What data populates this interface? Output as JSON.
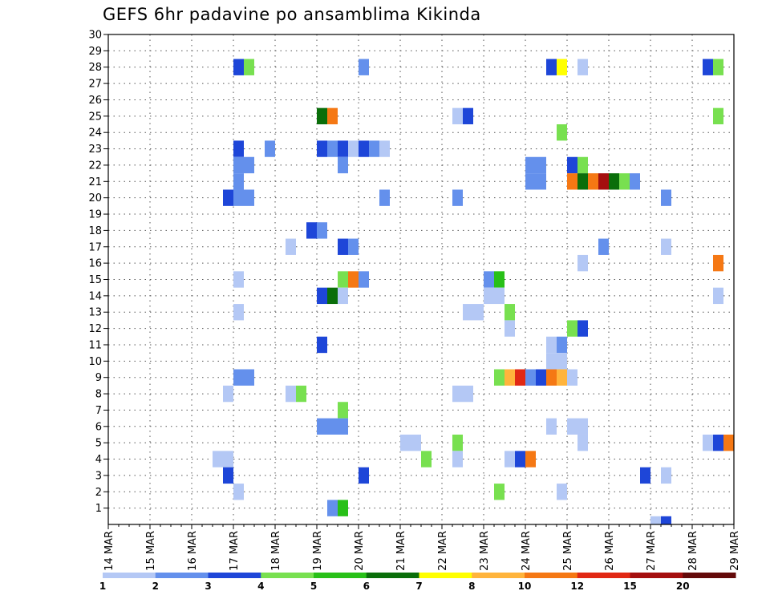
{
  "chart_data": {
    "type": "heatmap",
    "title": "GEFS 6hr padavine po ansamblima Kikinda",
    "x_ticks": [
      "14 MAR",
      "15 MAR",
      "16 MAR",
      "17 MAR",
      "18 MAR",
      "19 MAR",
      "20 MAR",
      "21 MAR",
      "22 MAR",
      "23 MAR",
      "24 MAR",
      "25 MAR",
      "26 MAR",
      "27 MAR",
      "28 MAR",
      "29 MAR"
    ],
    "y_ticks": [
      "1",
      "2",
      "3",
      "4",
      "5",
      "6",
      "7",
      "8",
      "9",
      "10",
      "11",
      "12",
      "13",
      "14",
      "15",
      "16",
      "17",
      "18",
      "19",
      "20",
      "21",
      "22",
      "23",
      "24",
      "25",
      "26",
      "27",
      "28",
      "29",
      "30"
    ],
    "xlim": [
      "14 MAR 00Z",
      "29 MAR 00Z"
    ],
    "ylim": [
      0,
      30
    ],
    "x_unit": "6-hour steps from 14 MAR 00Z",
    "grid": true,
    "colorbar": {
      "bounds": [
        "1",
        "2",
        "3",
        "4",
        "5",
        "6",
        "7",
        "8",
        "10",
        "12",
        "15",
        "20"
      ],
      "colors": [
        "#b4c8f5",
        "#6490ec",
        "#1e46d8",
        "#78e050",
        "#28c018",
        "#0a6e0a",
        "#ffff00",
        "#ffb43c",
        "#f57814",
        "#e12814",
        "#a50f0f",
        "#640a0a"
      ]
    },
    "cells": [
      {
        "x": 12.5,
        "y": 28,
        "v": "3"
      },
      {
        "x": 13.5,
        "y": 28,
        "v": "4"
      },
      {
        "x": 24.5,
        "y": 28,
        "v": "2"
      },
      {
        "x": 42.5,
        "y": 28,
        "v": "3"
      },
      {
        "x": 43.5,
        "y": 28,
        "v": "7"
      },
      {
        "x": 45.5,
        "y": 28,
        "v": "1"
      },
      {
        "x": 57.5,
        "y": 28,
        "v": "3"
      },
      {
        "x": 58.5,
        "y": 28,
        "v": "4"
      },
      {
        "x": 20.5,
        "y": 25,
        "v": "6"
      },
      {
        "x": 21.5,
        "y": 25,
        "v": "10"
      },
      {
        "x": 33.5,
        "y": 25,
        "v": "1"
      },
      {
        "x": 34.5,
        "y": 25,
        "v": "3"
      },
      {
        "x": 58.5,
        "y": 25,
        "v": "4"
      },
      {
        "x": 43.5,
        "y": 24,
        "v": "4"
      },
      {
        "x": 12.5,
        "y": 23,
        "v": "3"
      },
      {
        "x": 15.5,
        "y": 23,
        "v": "2"
      },
      {
        "x": 20.5,
        "y": 23,
        "v": "3"
      },
      {
        "x": 21.5,
        "y": 23,
        "v": "2"
      },
      {
        "x": 22.5,
        "y": 23,
        "v": "3"
      },
      {
        "x": 23.5,
        "y": 23,
        "v": "1"
      },
      {
        "x": 24.5,
        "y": 23,
        "v": "3"
      },
      {
        "x": 25.5,
        "y": 23,
        "v": "2"
      },
      {
        "x": 26.5,
        "y": 23,
        "v": "1"
      },
      {
        "x": 12.5,
        "y": 22,
        "v": "2"
      },
      {
        "x": 13.5,
        "y": 22,
        "v": "2"
      },
      {
        "x": 22.5,
        "y": 22,
        "v": "2"
      },
      {
        "x": 40.5,
        "y": 22,
        "v": "2"
      },
      {
        "x": 41.5,
        "y": 22,
        "v": "2"
      },
      {
        "x": 44.5,
        "y": 22,
        "v": "3"
      },
      {
        "x": 45.5,
        "y": 22,
        "v": "4"
      },
      {
        "x": 12.5,
        "y": 21,
        "v": "2"
      },
      {
        "x": 40.5,
        "y": 21,
        "v": "2"
      },
      {
        "x": 41.5,
        "y": 21,
        "v": "2"
      },
      {
        "x": 44.5,
        "y": 21,
        "v": "10"
      },
      {
        "x": 45.5,
        "y": 21,
        "v": "6"
      },
      {
        "x": 46.5,
        "y": 21,
        "v": "10"
      },
      {
        "x": 47.5,
        "y": 21,
        "v": "15"
      },
      {
        "x": 48.5,
        "y": 21,
        "v": "6"
      },
      {
        "x": 49.5,
        "y": 21,
        "v": "4"
      },
      {
        "x": 50.5,
        "y": 21,
        "v": "2"
      },
      {
        "x": 11.5,
        "y": 20,
        "v": "3"
      },
      {
        "x": 12.5,
        "y": 20,
        "v": "2"
      },
      {
        "x": 13.5,
        "y": 20,
        "v": "2"
      },
      {
        "x": 26.5,
        "y": 20,
        "v": "2"
      },
      {
        "x": 33.5,
        "y": 20,
        "v": "2"
      },
      {
        "x": 53.5,
        "y": 20,
        "v": "2"
      },
      {
        "x": 19.5,
        "y": 18,
        "v": "3"
      },
      {
        "x": 20.5,
        "y": 18,
        "v": "2"
      },
      {
        "x": 17.5,
        "y": 17,
        "v": "1"
      },
      {
        "x": 22.5,
        "y": 17,
        "v": "3"
      },
      {
        "x": 23.5,
        "y": 17,
        "v": "2"
      },
      {
        "x": 47.5,
        "y": 17,
        "v": "2"
      },
      {
        "x": 53.5,
        "y": 17,
        "v": "1"
      },
      {
        "x": 45.5,
        "y": 16,
        "v": "1"
      },
      {
        "x": 58.5,
        "y": 16,
        "v": "10"
      },
      {
        "x": 12.5,
        "y": 15,
        "v": "1"
      },
      {
        "x": 22.5,
        "y": 15,
        "v": "4"
      },
      {
        "x": 23.5,
        "y": 15,
        "v": "10"
      },
      {
        "x": 24.5,
        "y": 15,
        "v": "2"
      },
      {
        "x": 36.5,
        "y": 15,
        "v": "2"
      },
      {
        "x": 37.5,
        "y": 15,
        "v": "5"
      },
      {
        "x": 20.5,
        "y": 14,
        "v": "3"
      },
      {
        "x": 21.5,
        "y": 14,
        "v": "6"
      },
      {
        "x": 22.5,
        "y": 14,
        "v": "1"
      },
      {
        "x": 36.5,
        "y": 14,
        "v": "1"
      },
      {
        "x": 37.5,
        "y": 14,
        "v": "1"
      },
      {
        "x": 58.5,
        "y": 14,
        "v": "1"
      },
      {
        "x": 12.5,
        "y": 13,
        "v": "1"
      },
      {
        "x": 34.5,
        "y": 13,
        "v": "1"
      },
      {
        "x": 35.5,
        "y": 13,
        "v": "1"
      },
      {
        "x": 38.5,
        "y": 13,
        "v": "4"
      },
      {
        "x": 38.5,
        "y": 12,
        "v": "1"
      },
      {
        "x": 44.5,
        "y": 12,
        "v": "4"
      },
      {
        "x": 45.5,
        "y": 12,
        "v": "3"
      },
      {
        "x": 20.5,
        "y": 11,
        "v": "3"
      },
      {
        "x": 42.5,
        "y": 11,
        "v": "1"
      },
      {
        "x": 43.5,
        "y": 11,
        "v": "2"
      },
      {
        "x": 42.5,
        "y": 10,
        "v": "1"
      },
      {
        "x": 43.5,
        "y": 10,
        "v": "1"
      },
      {
        "x": 12.5,
        "y": 9,
        "v": "2"
      },
      {
        "x": 13.5,
        "y": 9,
        "v": "2"
      },
      {
        "x": 37.5,
        "y": 9,
        "v": "4"
      },
      {
        "x": 38.5,
        "y": 9,
        "v": "8"
      },
      {
        "x": 39.5,
        "y": 9,
        "v": "12"
      },
      {
        "x": 40.5,
        "y": 9,
        "v": "2"
      },
      {
        "x": 41.5,
        "y": 9,
        "v": "3"
      },
      {
        "x": 42.5,
        "y": 9,
        "v": "10"
      },
      {
        "x": 43.5,
        "y": 9,
        "v": "8"
      },
      {
        "x": 44.5,
        "y": 9,
        "v": "1"
      },
      {
        "x": 11.5,
        "y": 8,
        "v": "1"
      },
      {
        "x": 17.5,
        "y": 8,
        "v": "1"
      },
      {
        "x": 18.5,
        "y": 8,
        "v": "4"
      },
      {
        "x": 33.5,
        "y": 8,
        "v": "1"
      },
      {
        "x": 34.5,
        "y": 8,
        "v": "1"
      },
      {
        "x": 22.5,
        "y": 7,
        "v": "4"
      },
      {
        "x": 20.5,
        "y": 6,
        "v": "2"
      },
      {
        "x": 21.5,
        "y": 6,
        "v": "2"
      },
      {
        "x": 22.5,
        "y": 6,
        "v": "2"
      },
      {
        "x": 42.5,
        "y": 6,
        "v": "1"
      },
      {
        "x": 44.5,
        "y": 6,
        "v": "1"
      },
      {
        "x": 45.5,
        "y": 6,
        "v": "1"
      },
      {
        "x": 28.5,
        "y": 5,
        "v": "1"
      },
      {
        "x": 29.5,
        "y": 5,
        "v": "1"
      },
      {
        "x": 33.5,
        "y": 5,
        "v": "4"
      },
      {
        "x": 45.5,
        "y": 5,
        "v": "1"
      },
      {
        "x": 57.5,
        "y": 5,
        "v": "1"
      },
      {
        "x": 58.5,
        "y": 5,
        "v": "3"
      },
      {
        "x": 59.5,
        "y": 5,
        "v": "10"
      },
      {
        "x": 10.5,
        "y": 4,
        "v": "1"
      },
      {
        "x": 11.5,
        "y": 4,
        "v": "1"
      },
      {
        "x": 30.5,
        "y": 4,
        "v": "4"
      },
      {
        "x": 33.5,
        "y": 4,
        "v": "1"
      },
      {
        "x": 38.5,
        "y": 4,
        "v": "1"
      },
      {
        "x": 39.5,
        "y": 4,
        "v": "3"
      },
      {
        "x": 40.5,
        "y": 4,
        "v": "10"
      },
      {
        "x": 11.5,
        "y": 3,
        "v": "3"
      },
      {
        "x": 24.5,
        "y": 3,
        "v": "3"
      },
      {
        "x": 51.5,
        "y": 3,
        "v": "3"
      },
      {
        "x": 53.5,
        "y": 3,
        "v": "1"
      },
      {
        "x": 12.5,
        "y": 2,
        "v": "1"
      },
      {
        "x": 37.5,
        "y": 2,
        "v": "4"
      },
      {
        "x": 43.5,
        "y": 2,
        "v": "1"
      },
      {
        "x": 21.5,
        "y": 1,
        "v": "2"
      },
      {
        "x": 22.5,
        "y": 1,
        "v": "5"
      },
      {
        "x": 52.5,
        "y": 0,
        "v": "1"
      },
      {
        "x": 53.5,
        "y": 0,
        "v": "3"
      }
    ]
  }
}
